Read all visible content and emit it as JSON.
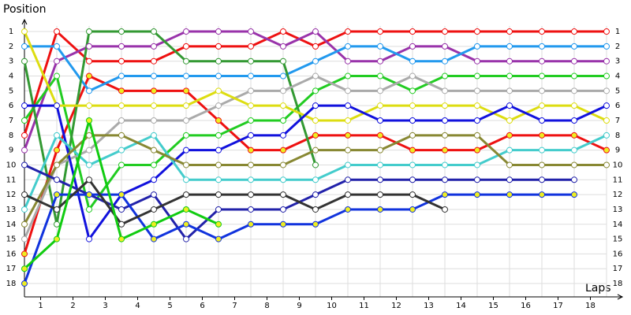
{
  "chart_data": {
    "type": "line",
    "title": "Position",
    "x_label": "Laps",
    "x": [
      0.5,
      1.5,
      2.5,
      3.5,
      4.5,
      5.5,
      6.5,
      7.5,
      8.5,
      9.5,
      10.5,
      11.5,
      12.5,
      13.5,
      14.5,
      15.5,
      16.5,
      17.5,
      18.5
    ],
    "xlim": [
      0.5,
      18.5
    ],
    "xticks": [
      1,
      2,
      3,
      4,
      5,
      6,
      7,
      8,
      9,
      10,
      11,
      12,
      13,
      14,
      15,
      16,
      17,
      18
    ],
    "ylim": [
      18.9,
      0.2
    ],
    "yticks": [
      1,
      2,
      3,
      4,
      5,
      6,
      7,
      8,
      9,
      10,
      11,
      12,
      13,
      14,
      15,
      16,
      17,
      18
    ],
    "grid": true,
    "series": [
      {
        "color": "#ee1111",
        "values": [
          8,
          1,
          3,
          3,
          3,
          2,
          2,
          2,
          1,
          2,
          1,
          1,
          1,
          1,
          1,
          1,
          1,
          1,
          1
        ]
      },
      {
        "color": "#ee1111",
        "marker_color": "#eeee22",
        "values": [
          16,
          9,
          4,
          5,
          5,
          5,
          7,
          9,
          9,
          8,
          8,
          8,
          9,
          9,
          9,
          8,
          8,
          8,
          9
        ]
      },
      {
        "color": "#9933aa",
        "values": [
          9,
          3,
          2,
          2,
          2,
          1,
          1,
          1,
          2,
          1,
          3,
          3,
          2,
          2,
          3,
          3,
          3,
          3,
          3
        ]
      },
      {
        "color": "#2299ee",
        "values": [
          2,
          2,
          5,
          4,
          4,
          4,
          4,
          4,
          4,
          3,
          2,
          2,
          3,
          3,
          2,
          2,
          2,
          2,
          2
        ]
      },
      {
        "color": "#22cc22",
        "values": [
          7,
          4,
          13,
          10,
          10,
          8,
          8,
          7,
          7,
          5,
          4,
          4,
          5,
          4,
          4,
          4,
          4,
          4,
          4
        ]
      },
      {
        "color": "#339933",
        "values": [
          3,
          14,
          1,
          1,
          1,
          3,
          3,
          3,
          3,
          10,
          null,
          null,
          null,
          null,
          null,
          null,
          null,
          null,
          null
        ]
      },
      {
        "color": "#aaaaaa",
        "values": [
          15,
          10,
          9,
          7,
          7,
          7,
          6,
          5,
          5,
          4,
          5,
          5,
          4,
          5,
          5,
          5,
          5,
          5,
          5
        ]
      },
      {
        "color": "#dddd11",
        "values": [
          1,
          6,
          6,
          6,
          6,
          6,
          5,
          6,
          6,
          7,
          7,
          6,
          6,
          6,
          6,
          7,
          6,
          6,
          7
        ]
      },
      {
        "color": "#1111dd",
        "values": [
          6,
          6,
          15,
          12,
          11,
          9,
          9,
          8,
          8,
          6,
          6,
          7,
          7,
          7,
          7,
          6,
          7,
          7,
          6
        ]
      },
      {
        "color": "#44cccc",
        "values": [
          13,
          8,
          10,
          9,
          8,
          11,
          11,
          11,
          11,
          11,
          10,
          10,
          10,
          10,
          10,
          9,
          9,
          9,
          8
        ]
      },
      {
        "color": "#888833",
        "values": [
          14,
          10,
          8,
          8,
          9,
          10,
          10,
          10,
          10,
          9,
          9,
          9,
          8,
          8,
          8,
          10,
          10,
          10,
          10
        ]
      },
      {
        "color": "#2222aa",
        "values": [
          10,
          11,
          12,
          13,
          12,
          15,
          13,
          13,
          13,
          12,
          11,
          11,
          11,
          11,
          11,
          11,
          11,
          11,
          null
        ]
      },
      {
        "color": "#1133dd",
        "marker_color": "#eeee22",
        "values": [
          18,
          12,
          12,
          12,
          15,
          14,
          15,
          14,
          14,
          14,
          13,
          13,
          13,
          12,
          12,
          12,
          12,
          12,
          null
        ]
      },
      {
        "color": "#333333",
        "values": [
          12,
          13,
          11,
          14,
          13,
          12,
          12,
          12,
          12,
          13,
          12,
          12,
          12,
          13,
          null,
          null,
          null,
          null,
          null
        ]
      },
      {
        "color": "#11cc11",
        "marker_color": "#eeee22",
        "values": [
          17,
          15,
          7,
          15,
          14,
          13,
          14,
          null,
          null,
          null,
          null,
          null,
          null,
          null,
          null,
          null,
          null,
          null,
          null
        ]
      }
    ]
  }
}
